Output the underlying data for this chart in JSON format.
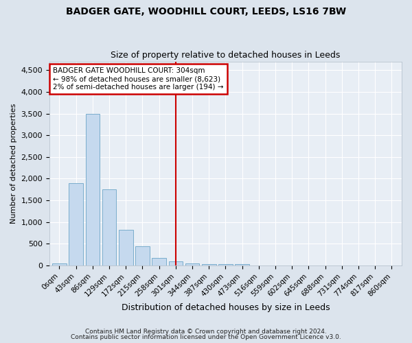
{
  "title": "BADGER GATE, WOODHILL COURT, LEEDS, LS16 7BW",
  "subtitle": "Size of property relative to detached houses in Leeds",
  "xlabel": "Distribution of detached houses by size in Leeds",
  "ylabel": "Number of detached properties",
  "bar_color": "#c5d9ee",
  "bar_edge_color": "#7aadcc",
  "background_color": "#e8eef5",
  "grid_color": "#ffffff",
  "categories": [
    "0sqm",
    "43sqm",
    "86sqm",
    "129sqm",
    "172sqm",
    "215sqm",
    "258sqm",
    "301sqm",
    "344sqm",
    "387sqm",
    "430sqm",
    "473sqm",
    "516sqm",
    "559sqm",
    "602sqm",
    "645sqm",
    "688sqm",
    "731sqm",
    "774sqm",
    "817sqm",
    "860sqm"
  ],
  "values": [
    50,
    1900,
    3500,
    1750,
    830,
    450,
    170,
    90,
    55,
    40,
    35,
    30,
    5,
    3,
    2,
    1,
    1,
    1,
    0,
    0,
    0
  ],
  "red_line_index": 7,
  "red_line_color": "#cc0000",
  "annotation_line1": "BADGER GATE WOODHILL COURT: 304sqm",
  "annotation_line2": "← 98% of detached houses are smaller (8,623)",
  "annotation_line3": "2% of semi-detached houses are larger (194) →",
  "annotation_box_color": "#ffffff",
  "annotation_box_edge_color": "#cc0000",
  "ylim": [
    0,
    4700
  ],
  "yticks": [
    0,
    500,
    1000,
    1500,
    2000,
    2500,
    3000,
    3500,
    4000,
    4500
  ],
  "footer_line1": "Contains HM Land Registry data © Crown copyright and database right 2024.",
  "footer_line2": "Contains public sector information licensed under the Open Government Licence v3.0.",
  "title_fontsize": 10,
  "subtitle_fontsize": 9,
  "xlabel_fontsize": 9,
  "ylabel_fontsize": 8
}
